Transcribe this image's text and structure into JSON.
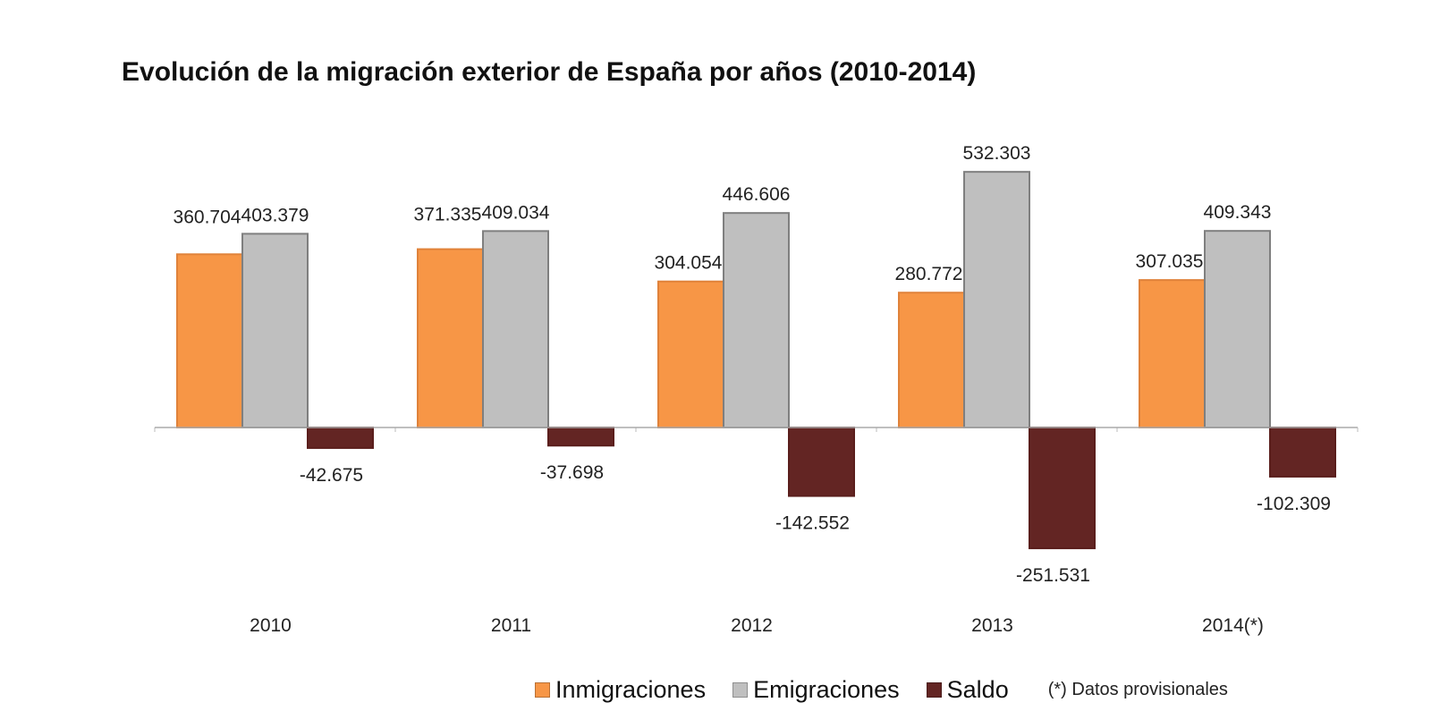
{
  "chart_data": {
    "type": "bar",
    "title": "Evolución de la migración exterior de España por años (2010-2014)",
    "categories": [
      "2010",
      "2011",
      "2012",
      "2013",
      "2014(*)"
    ],
    "series": [
      {
        "name": "Inmigraciones",
        "color": "#F79646",
        "values": [
          360704,
          371335,
          304054,
          280772,
          307035
        ],
        "labels": [
          "360.704",
          "371.335",
          "304.054",
          "280.772",
          "307.035"
        ]
      },
      {
        "name": "Emigraciones",
        "color": "#BFBFBF",
        "values": [
          403379,
          409034,
          446606,
          532303,
          409343
        ],
        "labels": [
          "403.379",
          "409.034",
          "446.606",
          "532.303",
          "409.343"
        ]
      },
      {
        "name": "Saldo",
        "color": "#632523",
        "values": [
          -42675,
          -37698,
          -142552,
          -251531,
          -102309
        ],
        "labels": [
          "-42.675",
          "-37.698",
          "-142.552",
          "-251.531",
          "-102.309"
        ]
      }
    ],
    "xlabel": "",
    "ylabel": "",
    "grid": false,
    "legend_position": "bottom",
    "note": "(*) Datos provisionales"
  }
}
